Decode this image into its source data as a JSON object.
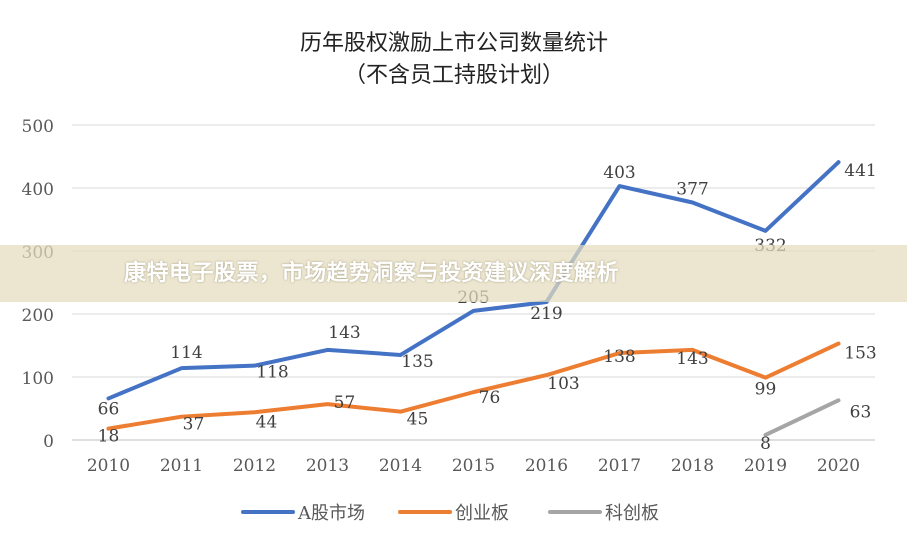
{
  "overlay": {
    "banner_text": "康特电子股票，市场趋势洞察与投资建议深度解析"
  },
  "chart_data": {
    "type": "line",
    "title": "历年股权激励上市公司数量统计",
    "subtitle": "（不含员工持股计划）",
    "xlabel": "",
    "ylabel": "",
    "x": [
      "2010",
      "2011",
      "2012",
      "2013",
      "2014",
      "2015",
      "2016",
      "2017",
      "2018",
      "2019",
      "2020"
    ],
    "ylim": [
      0,
      500
    ],
    "yticks": [
      0,
      100,
      200,
      300,
      400,
      500
    ],
    "grid": true,
    "legend_position": "bottom",
    "series": [
      {
        "name": "A股市场",
        "color": "#4472c4",
        "values": [
          66,
          114,
          118,
          143,
          135,
          205,
          219,
          403,
          377,
          332,
          441
        ]
      },
      {
        "name": "创业板",
        "color": "#ed7d31",
        "values": [
          18,
          37,
          44,
          57,
          45,
          76,
          103,
          138,
          143,
          99,
          153
        ]
      },
      {
        "name": "科创板",
        "color": "#a5a5a5",
        "values": [
          null,
          null,
          null,
          null,
          null,
          null,
          null,
          null,
          null,
          8,
          63
        ]
      }
    ]
  }
}
